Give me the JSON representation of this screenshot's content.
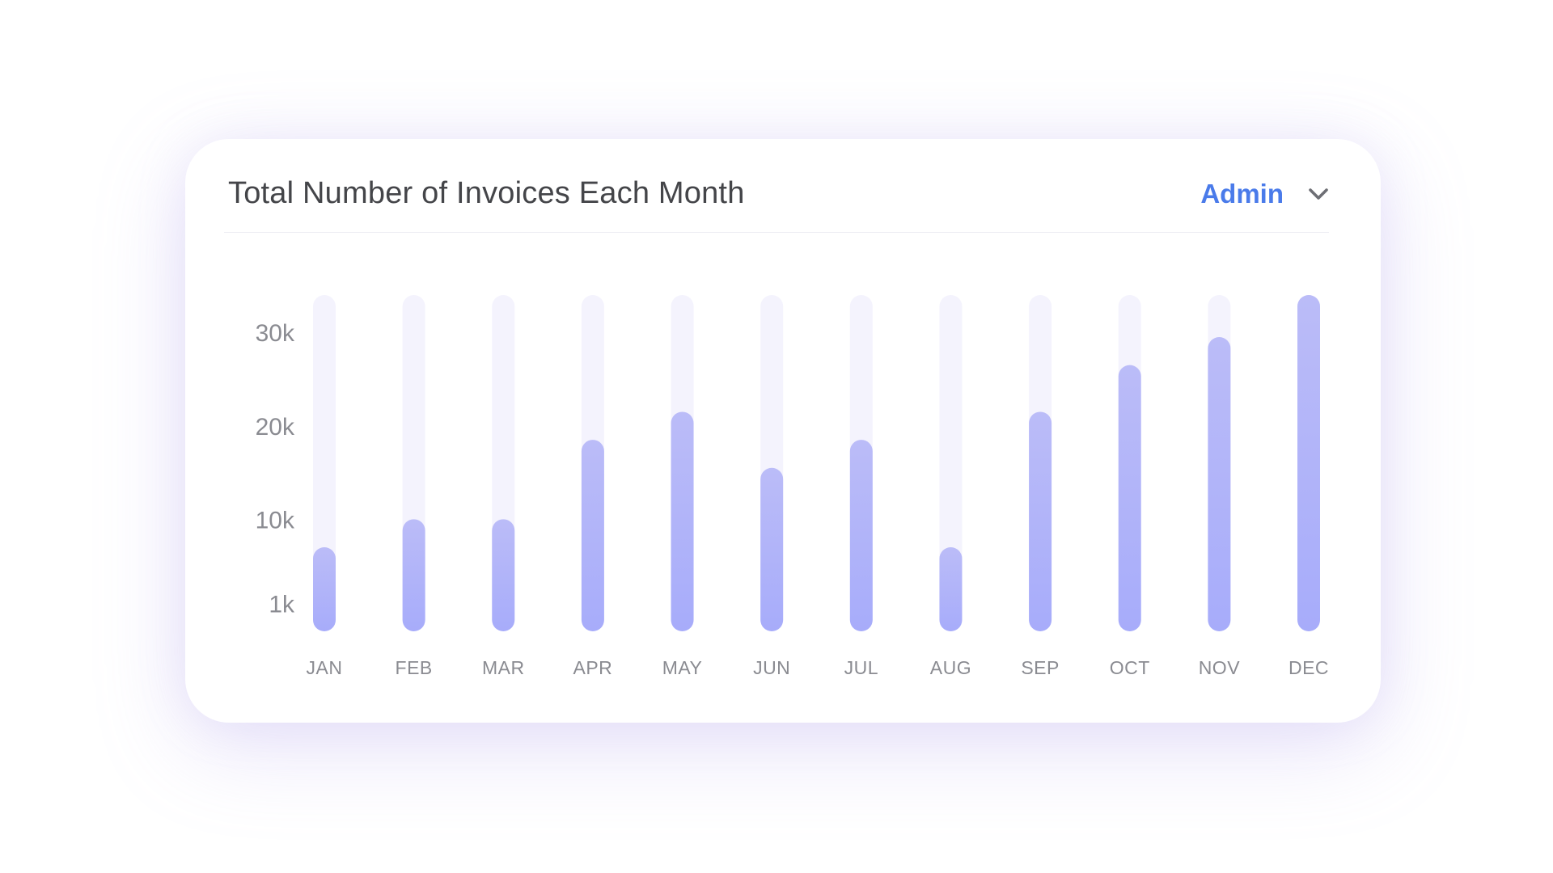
{
  "card": {
    "title": "Total Number of Invoices Each Month",
    "role_select": {
      "value": "Admin",
      "icon": "chevron-down-icon"
    }
  },
  "colors": {
    "accent": "#4a7bea",
    "bar_top": "#bbbcf8",
    "bar_bottom": "#a7acfa",
    "track": "#f4f3fd",
    "text": "#444549",
    "muted": "#8a8b91"
  },
  "chart_data": {
    "type": "bar",
    "title": "Total Number of Invoices Each Month",
    "xlabel": "",
    "ylabel": "",
    "categories": [
      "JAN",
      "FEB",
      "MAR",
      "APR",
      "MAY",
      "JUN",
      "JUL",
      "AUG",
      "SEP",
      "OCT",
      "NOV",
      "DEC"
    ],
    "values": [
      7000,
      10000,
      10000,
      18500,
      21500,
      15500,
      18500,
      7000,
      21500,
      26500,
      29500,
      34000
    ],
    "yticks": [
      {
        "label": "1k",
        "value": 1000
      },
      {
        "label": "10k",
        "value": 10000
      },
      {
        "label": "20k",
        "value": 20000
      },
      {
        "label": "30k",
        "value": 30000
      }
    ],
    "ylim": [
      -2000,
      34000
    ],
    "grid": false,
    "legend": "none",
    "max_track": true
  }
}
